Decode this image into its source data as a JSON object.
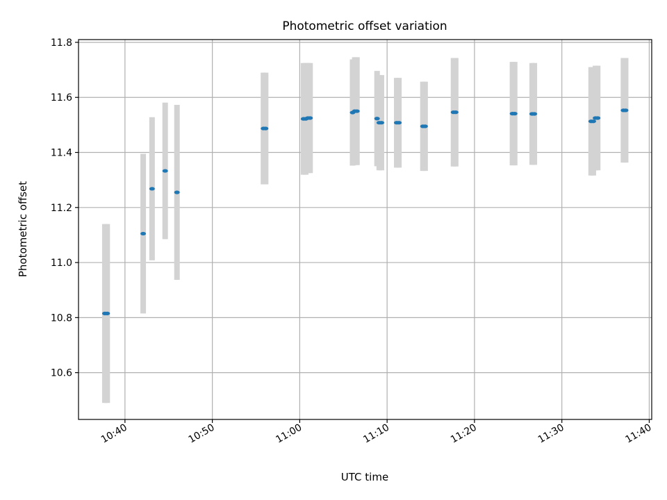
{
  "chart_data": {
    "type": "scatter",
    "title": "Photometric offset variation",
    "xlabel": "UTC time",
    "ylabel": "Photometric offset",
    "x_ticks": [
      "10:40",
      "10:50",
      "11:00",
      "11:10",
      "11:20",
      "11:30",
      "11:40"
    ],
    "y_ticks": [
      "10.6",
      "10.8",
      "11.0",
      "11.2",
      "11.4",
      "11.6",
      "11.8"
    ],
    "xlim": [
      "10:34:41",
      "11:40:17"
    ],
    "ylim": [
      10.43,
      11.81
    ],
    "grid": true,
    "colors": {
      "point": "#1f77b4",
      "errorbar": "#d3d3d3"
    },
    "points": [
      {
        "time": "10:37:42",
        "y": 10.815,
        "yerr": 0.325
      },
      {
        "time": "10:37:58",
        "y": 10.815,
        "yerr": 0.325
      },
      {
        "time": "10:42:05",
        "y": 11.105,
        "yerr": 0.29
      },
      {
        "time": "10:43:06",
        "y": 11.268,
        "yerr": 0.26
      },
      {
        "time": "10:44:36",
        "y": 11.333,
        "yerr": 0.248
      },
      {
        "time": "10:45:57",
        "y": 11.255,
        "yerr": 0.318
      },
      {
        "time": "10:55:51",
        "y": 11.487,
        "yerr": 0.203
      },
      {
        "time": "10:56:06",
        "y": 11.487,
        "yerr": 0.203
      },
      {
        "time": "11:00:26",
        "y": 11.522,
        "yerr": 0.203
      },
      {
        "time": "11:00:41",
        "y": 11.522,
        "yerr": 0.203
      },
      {
        "time": "11:00:56",
        "y": 11.525,
        "yerr": 0.2
      },
      {
        "time": "11:01:11",
        "y": 11.525,
        "yerr": 0.2
      },
      {
        "time": "11:06:03",
        "y": 11.545,
        "yerr": 0.193
      },
      {
        "time": "11:06:18",
        "y": 11.55,
        "yerr": 0.196
      },
      {
        "time": "11:06:33",
        "y": 11.55,
        "yerr": 0.196
      },
      {
        "time": "11:08:51",
        "y": 11.523,
        "yerr": 0.173
      },
      {
        "time": "11:09:06",
        "y": 11.508,
        "yerr": 0.173
      },
      {
        "time": "11:09:21",
        "y": 11.508,
        "yerr": 0.173
      },
      {
        "time": "11:11:06",
        "y": 11.508,
        "yerr": 0.163
      },
      {
        "time": "11:11:21",
        "y": 11.508,
        "yerr": 0.163
      },
      {
        "time": "11:14:06",
        "y": 11.495,
        "yerr": 0.162
      },
      {
        "time": "11:14:21",
        "y": 11.495,
        "yerr": 0.162
      },
      {
        "time": "11:17:36",
        "y": 11.546,
        "yerr": 0.197
      },
      {
        "time": "11:17:51",
        "y": 11.546,
        "yerr": 0.197
      },
      {
        "time": "11:24:21",
        "y": 11.541,
        "yerr": 0.188
      },
      {
        "time": "11:24:36",
        "y": 11.541,
        "yerr": 0.188
      },
      {
        "time": "11:26:36",
        "y": 11.54,
        "yerr": 0.185
      },
      {
        "time": "11:26:51",
        "y": 11.54,
        "yerr": 0.185
      },
      {
        "time": "11:33:21",
        "y": 11.513,
        "yerr": 0.197
      },
      {
        "time": "11:33:36",
        "y": 11.513,
        "yerr": 0.197
      },
      {
        "time": "11:33:51",
        "y": 11.525,
        "yerr": 0.19
      },
      {
        "time": "11:34:06",
        "y": 11.525,
        "yerr": 0.19
      },
      {
        "time": "11:37:03",
        "y": 11.553,
        "yerr": 0.19
      },
      {
        "time": "11:37:18",
        "y": 11.553,
        "yerr": 0.19
      }
    ]
  }
}
